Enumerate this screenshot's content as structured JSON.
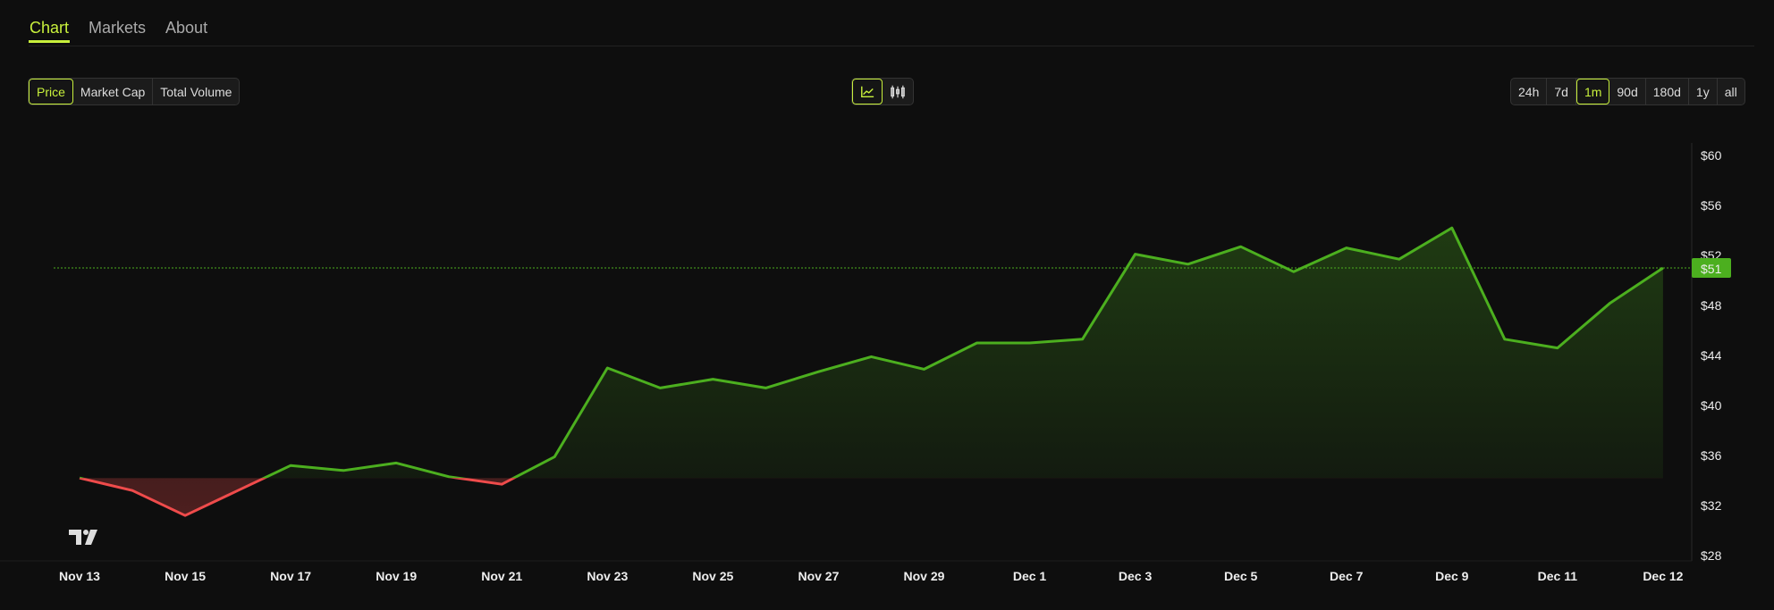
{
  "tabs": [
    {
      "label": "Chart",
      "active": true
    },
    {
      "label": "Markets"
    },
    {
      "label": "About"
    }
  ],
  "metric_buttons": [
    {
      "label": "Price",
      "active": true
    },
    {
      "label": "Market Cap"
    },
    {
      "label": "Total Volume"
    }
  ],
  "chart_type_buttons": [
    {
      "icon": "line-chart-icon",
      "active": true
    },
    {
      "icon": "candlestick-icon"
    }
  ],
  "range_buttons": [
    {
      "label": "24h"
    },
    {
      "label": "7d"
    },
    {
      "label": "1m",
      "active": true
    },
    {
      "label": "90d"
    },
    {
      "label": "180d"
    },
    {
      "label": "1y"
    },
    {
      "label": "all"
    }
  ],
  "colors": {
    "accent": "#c8f03c",
    "up": "#4caf1f",
    "down": "#ef4b4b",
    "background": "#0e0e0e"
  },
  "chart_data": {
    "type": "line",
    "style": "baseline area",
    "baseline": 34.2,
    "current_price_label": "$51",
    "current_price": 51,
    "values": [
      34.2,
      33.2,
      31.2,
      33.2,
      35.2,
      34.8,
      35.4,
      34.3,
      33.7,
      35.9,
      43.0,
      41.4,
      42.1,
      41.4,
      42.7,
      43.9,
      42.9,
      45.0,
      45.0,
      45.3,
      52.1,
      51.3,
      52.7,
      50.7,
      52.6,
      51.7,
      54.2,
      45.3,
      44.6,
      48.2,
      51.0
    ],
    "x_tick_labels": [
      "Nov 13",
      "Nov 15",
      "Nov 17",
      "Nov 19",
      "Nov 21",
      "Nov 23",
      "Nov 25",
      "Nov 27",
      "Nov 29",
      "Dec 1",
      "Dec 3",
      "Dec 5",
      "Dec 7",
      "Dec 9",
      "Dec 11",
      "Dec 12"
    ],
    "y_tick_labels": [
      "$60",
      "$56",
      "$52",
      "$48",
      "$44",
      "$40",
      "$36",
      "$32",
      "$28"
    ],
    "y_ticks": [
      60,
      56,
      52,
      48,
      44,
      40,
      36,
      32,
      28
    ],
    "ylim": [
      28,
      60
    ],
    "grid": false,
    "watermark": "TV"
  }
}
